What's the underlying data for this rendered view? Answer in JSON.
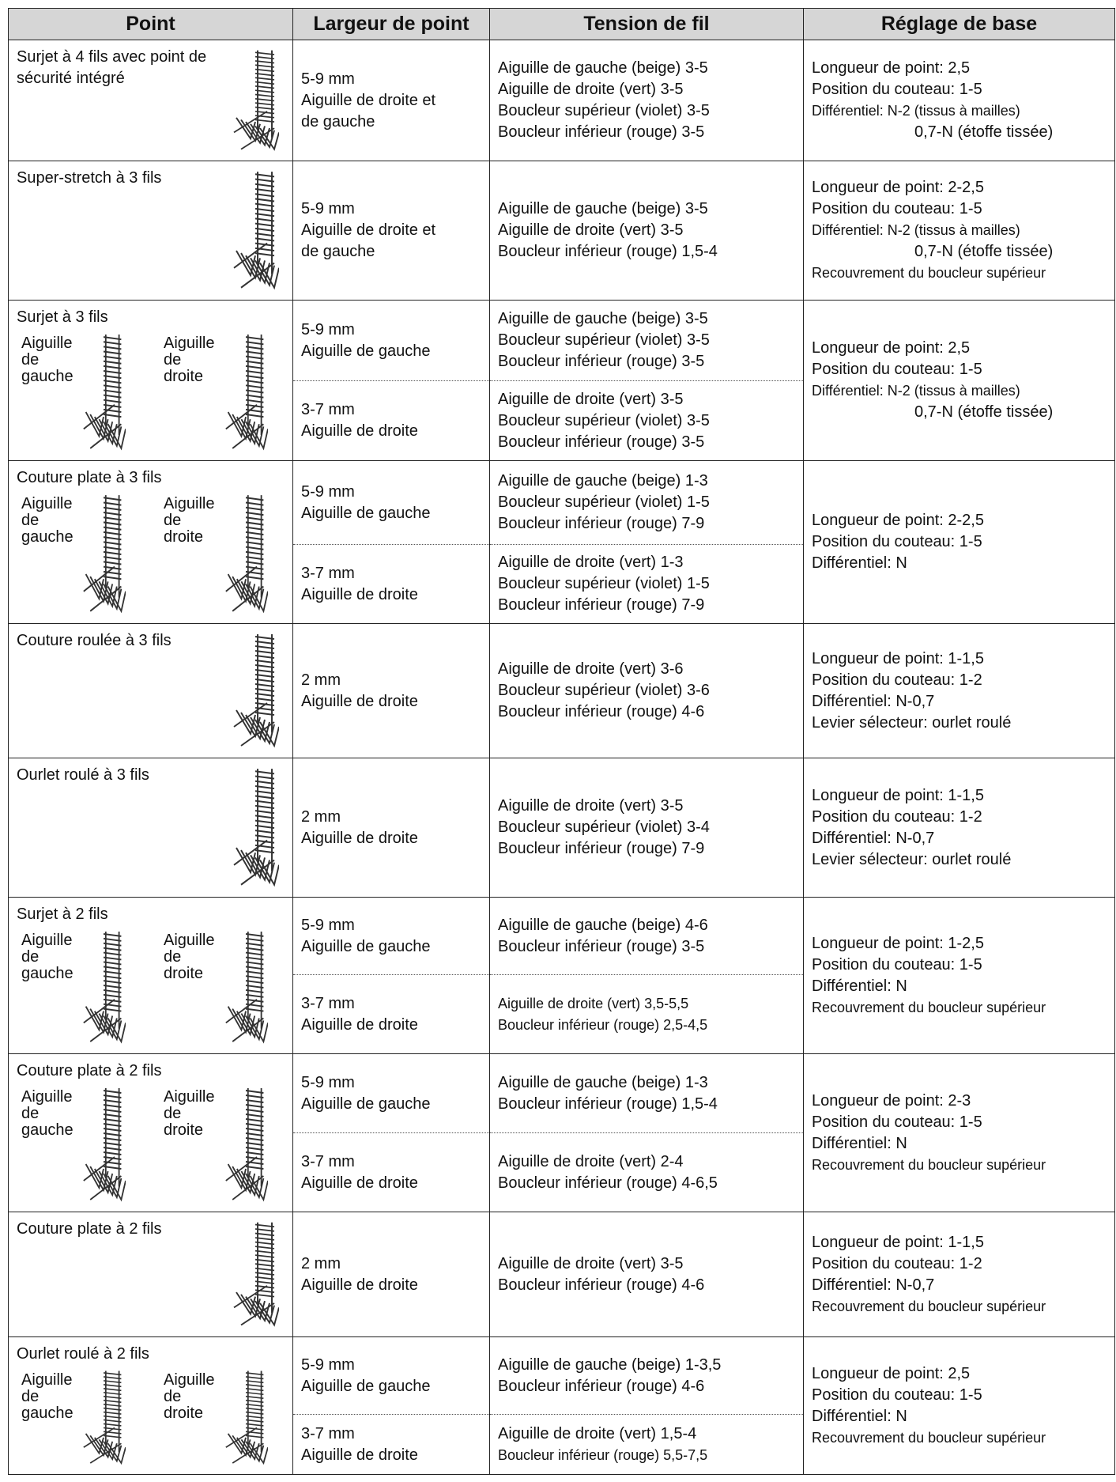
{
  "table": {
    "header": [
      "Point",
      "Largeur de point",
      "Tension de fil",
      "Réglage de base"
    ],
    "rows": [
      {
        "point": "Surjet à 4 fils avec point de sécurité intégré",
        "widths": [
          [
            "5-9 mm",
            "Aiguille de droite et",
            "de gauche"
          ]
        ],
        "tensions": [
          [
            "Aiguille de gauche (beige) 3-5",
            "Aiguille de droite (vert) 3-5",
            "Boucleur supérieur (violet) 3-5",
            "Boucleur inférieur (rouge) 3-5"
          ]
        ],
        "settings": [
          "Longueur de point: 2,5",
          "Position du couteau: 1-5",
          "Différentiel: N-2 (tissus à mailles)",
          "0,7-N (étoffe tissée)"
        ]
      },
      {
        "point": "Super-stretch à 3 fils",
        "widths": [
          [
            "5-9 mm",
            "Aiguille de droite et",
            "de gauche"
          ]
        ],
        "tensions": [
          [
            "Aiguille de gauche (beige) 3-5",
            "Aiguille de droite (vert) 3-5",
            "Boucleur inférieur (rouge) 1,5-4"
          ]
        ],
        "settings": [
          "Longueur de point: 2-2,5",
          "Position du couteau: 1-5",
          "Différentiel: N-2 (tissus à mailles)",
          "0,7-N (étoffe tissée)",
          "Recouvrement du boucleur supérieur"
        ]
      },
      {
        "point": "Surjet à 3 fils",
        "needles": [
          [
            "Aiguille",
            "de",
            "gauche"
          ],
          [
            "Aiguille",
            "de",
            "droite"
          ]
        ],
        "widths": [
          [
            "5-9 mm",
            "Aiguille de gauche"
          ],
          [
            "3-7 mm",
            "Aiguille de droite"
          ]
        ],
        "tensions": [
          [
            "Aiguille de gauche (beige) 3-5",
            "Boucleur supérieur (violet) 3-5",
            "Boucleur inférieur (rouge) 3-5"
          ],
          [
            "Aiguille de droite (vert) 3-5",
            "Boucleur supérieur (violet) 3-5",
            "Boucleur inférieur (rouge) 3-5"
          ]
        ],
        "settings": [
          "Longueur de point: 2,5",
          "Position du couteau: 1-5",
          "Différentiel: N-2 (tissus à mailles)",
          "0,7-N (étoffe tissée)"
        ]
      },
      {
        "point": "Couture plate à 3 fils",
        "needles": [
          [
            "Aiguille",
            "de",
            "gauche"
          ],
          [
            "Aiguille",
            "de",
            "droite"
          ]
        ],
        "widths": [
          [
            "5-9 mm",
            "Aiguille de gauche"
          ],
          [
            "3-7 mm",
            "Aiguille de droite"
          ]
        ],
        "tensions": [
          [
            "Aiguille de gauche (beige) 1-3",
            "Boucleur supérieur (violet) 1-5",
            "Boucleur inférieur (rouge) 7-9"
          ],
          [
            "Aiguille de droite (vert) 1-3",
            "Boucleur supérieur (violet) 1-5",
            "Boucleur inférieur (rouge) 7-9"
          ]
        ],
        "settings": [
          "Longueur de point: 2-2,5",
          "Position du couteau: 1-5",
          "Différentiel: N"
        ]
      },
      {
        "point": "Couture roulée à 3 fils",
        "widths": [
          [
            "2 mm",
            "Aiguille de droite"
          ]
        ],
        "tensions": [
          [
            "Aiguille de droite (vert) 3-6",
            "Boucleur supérieur (violet) 3-6",
            "Boucleur inférieur (rouge) 4-6"
          ]
        ],
        "settings": [
          "Longueur de point: 1-1,5",
          "Position du couteau: 1-2",
          "Différentiel: N-0,7",
          "Levier sélecteur: ourlet roulé"
        ]
      },
      {
        "point": "Ourlet roulé à 3 fils",
        "widths": [
          [
            "2 mm",
            "Aiguille de droite"
          ]
        ],
        "tensions": [
          [
            "Aiguille de droite (vert) 3-5",
            "Boucleur supérieur (violet) 3-4",
            "Boucleur inférieur (rouge) 7-9"
          ]
        ],
        "settings": [
          "Longueur de point: 1-1,5",
          "Position du couteau: 1-2",
          "Différentiel: N-0,7",
          "Levier sélecteur: ourlet roulé"
        ]
      },
      {
        "point": "Surjet à 2 fils",
        "needles": [
          [
            "Aiguille",
            "de",
            "gauche"
          ],
          [
            "Aiguille",
            "de",
            "droite"
          ]
        ],
        "widths": [
          [
            "5-9 mm",
            "Aiguille de gauche"
          ],
          [
            "3-7 mm",
            "Aiguille de droite"
          ]
        ],
        "tensions": [
          [
            "Aiguille de gauche (beige) 4-6",
            "Boucleur inférieur (rouge) 3-5"
          ],
          [
            "Aiguille de droite (vert) 3,5-5,5",
            "Boucleur inférieur (rouge) 2,5-4,5"
          ]
        ],
        "settings": [
          "Longueur de point: 1-2,5",
          "Position du couteau: 1-5",
          "Différentiel: N",
          "Recouvrement du boucleur supérieur"
        ]
      },
      {
        "point": "Couture plate à 2 fils",
        "needles": [
          [
            "Aiguille",
            "de",
            "gauche"
          ],
          [
            "Aiguille",
            "de",
            "droite"
          ]
        ],
        "widths": [
          [
            "5-9 mm",
            "Aiguille de gauche"
          ],
          [
            "3-7 mm",
            "Aiguille de droite"
          ]
        ],
        "tensions": [
          [
            "Aiguille de gauche (beige) 1-3",
            "Boucleur inférieur (rouge) 1,5-4"
          ],
          [
            "Aiguille de droite (vert) 2-4",
            "Boucleur inférieur (rouge) 4-6,5"
          ]
        ],
        "settings": [
          "Longueur de point: 2-3",
          "Position du couteau: 1-5",
          "Différentiel: N",
          "Recouvrement du boucleur supérieur"
        ]
      },
      {
        "point": "Couture plate à 2 fils",
        "widths": [
          [
            "2 mm",
            "Aiguille de droite"
          ]
        ],
        "tensions": [
          [
            "Aiguille de droite (vert) 3-5",
            "Boucleur inférieur (rouge) 4-6"
          ]
        ],
        "settings": [
          "Longueur de point: 1-1,5",
          "Position du couteau: 1-2",
          "Différentiel: N-0,7",
          "Recouvrement du boucleur supérieur"
        ]
      },
      {
        "point": "Ourlet roulé à 2 fils",
        "needles": [
          [
            "Aiguille",
            "de",
            "gauche"
          ],
          [
            "Aiguille",
            "de",
            "droite"
          ]
        ],
        "widths": [
          [
            "5-9 mm",
            "Aiguille de gauche"
          ],
          [
            "3-7 mm",
            "Aiguille de droite"
          ]
        ],
        "tensions": [
          [
            "Aiguille de gauche (beige) 1-3,5",
            "Boucleur inférieur (rouge) 4-6"
          ],
          [
            "Aiguille de droite (vert) 1,5-4",
            "Boucleur inférieur (rouge) 5,5-7,5"
          ]
        ],
        "settings": [
          "Longueur de point: 2,5",
          "Position du couteau: 1-5",
          "Différentiel: N",
          "Recouvrement du boucleur supérieur"
        ]
      }
    ]
  }
}
